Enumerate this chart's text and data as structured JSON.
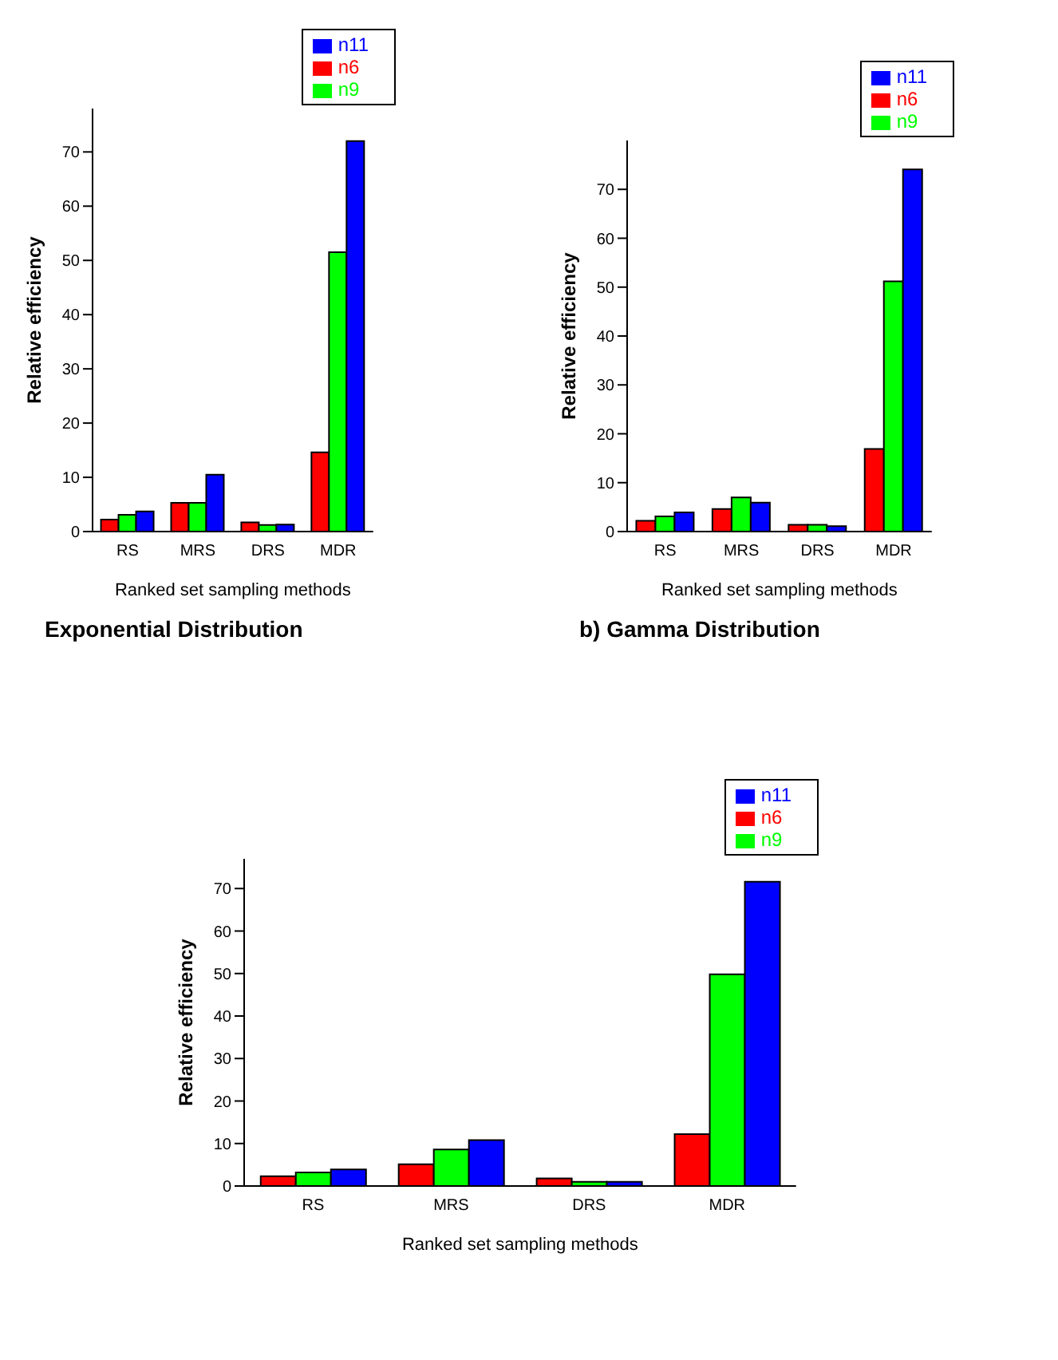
{
  "chart_data": [
    {
      "type": "bar",
      "title": "Exponential Distribution",
      "xlabel": "Ranked set sampling methods",
      "ylabel": "Relative efficiency",
      "categories": [
        "RS",
        "MRS",
        "DRS",
        "MDR"
      ],
      "series": [
        {
          "name": "n6",
          "color": "#ff0000",
          "values": [
            2.2,
            5.3,
            1.7,
            14.6
          ]
        },
        {
          "name": "n9",
          "color": "#00ff00",
          "values": [
            3.1,
            5.3,
            1.2,
            51.5
          ]
        },
        {
          "name": "n11",
          "color": "#0000ff",
          "values": [
            3.7,
            10.5,
            1.3,
            72
          ]
        }
      ],
      "ylim": [
        0,
        78
      ],
      "yticks": [
        0,
        10,
        20,
        30,
        40,
        50,
        60,
        70
      ],
      "legend": "top right",
      "grid": false
    },
    {
      "type": "bar",
      "title": "b) Gamma Distribution",
      "xlabel": "Ranked set sampling methods",
      "ylabel": "Relative efficiency",
      "categories": [
        "RS",
        "MRS",
        "DRS",
        "MDR"
      ],
      "series": [
        {
          "name": "n6",
          "color": "#ff0000",
          "values": [
            2.2,
            4.6,
            1.4,
            16.9
          ]
        },
        {
          "name": "n9",
          "color": "#00ff00",
          "values": [
            3.1,
            7.0,
            1.4,
            51.2
          ]
        },
        {
          "name": "n11",
          "color": "#0000ff",
          "values": [
            3.9,
            5.9,
            1.1,
            74.1
          ]
        }
      ],
      "ylim": [
        0,
        80
      ],
      "yticks": [
        0,
        10,
        20,
        30,
        40,
        50,
        60,
        70
      ],
      "legend": "top right",
      "grid": false
    },
    {
      "type": "bar",
      "xlabel": "Ranked set sampling methods",
      "ylabel": "Relative efficiency",
      "categories": [
        "RS",
        "MRS",
        "DRS",
        "MDR"
      ],
      "series": [
        {
          "name": "n6",
          "color": "#ff0000",
          "values": [
            2.3,
            5.1,
            1.8,
            12.2
          ]
        },
        {
          "name": "n9",
          "color": "#00ff00",
          "values": [
            3.2,
            8.6,
            1.0,
            49.8
          ]
        },
        {
          "name": "n11",
          "color": "#0000ff",
          "values": [
            3.9,
            10.8,
            1.0,
            71.6
          ]
        }
      ],
      "ylim": [
        0,
        77
      ],
      "yticks": [
        0,
        10,
        20,
        30,
        40,
        50,
        60,
        70
      ],
      "legend": "top right",
      "grid": false
    }
  ]
}
